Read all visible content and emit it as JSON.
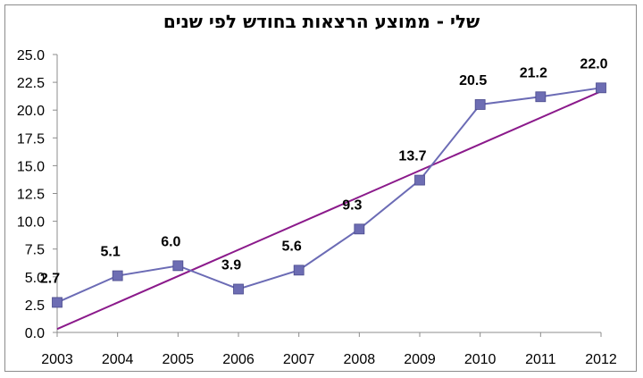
{
  "chart_data": {
    "type": "line",
    "title": "שלי - ממוצע הרצאות בחודש לפי שנים",
    "x": [
      "2003",
      "2004",
      "2005",
      "2006",
      "2007",
      "2008",
      "2009",
      "2010",
      "2011",
      "2012"
    ],
    "series": [
      {
        "values": [
          2.7,
          5.1,
          6.0,
          3.9,
          5.6,
          9.3,
          13.7,
          20.5,
          21.2,
          22.0
        ],
        "data_labels": [
          "2.7",
          "5.1",
          "6.0",
          "3.9",
          "5.6",
          "9.3",
          "13.7",
          "20.5",
          "21.2",
          "22.0"
        ],
        "color": "#6b6bb5",
        "marker_color": "#6d6db3",
        "marker": "square"
      }
    ],
    "trendline": {
      "type": "linear",
      "color": "#8b1a8b"
    },
    "ylim": [
      0,
      25
    ],
    "yticks": [
      "0.0",
      "2.5",
      "5.0",
      "7.5",
      "10.0",
      "12.5",
      "15.0",
      "17.5",
      "20.0",
      "22.5",
      "25.0"
    ],
    "ytick_values": [
      0,
      2.5,
      5,
      7.5,
      10,
      12.5,
      15,
      17.5,
      20,
      22.5,
      25
    ],
    "grid": false,
    "legend": "none",
    "xlabel": "",
    "ylabel": ""
  }
}
